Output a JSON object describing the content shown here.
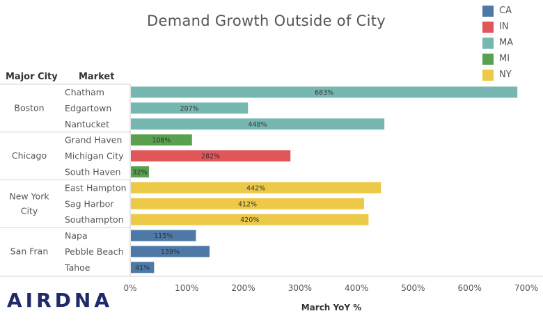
{
  "chart_data": {
    "type": "bar",
    "orientation": "horizontal",
    "title": "Demand Growth Outside of City",
    "xlabel": "March YoY %",
    "row_headers": [
      "Major City",
      "Market"
    ],
    "xlim": [
      0,
      700
    ],
    "xticks": [
      "0%",
      "100%",
      "200%",
      "300%",
      "400%",
      "500%",
      "600%",
      "700%"
    ],
    "legend_position": "top-right",
    "legend": [
      {
        "label": "CA",
        "color": "#4e79a7"
      },
      {
        "label": "IN",
        "color": "#e15759"
      },
      {
        "label": "MA",
        "color": "#76b7b2"
      },
      {
        "label": "MI",
        "color": "#59a14f"
      },
      {
        "label": "NY",
        "color": "#edc948"
      }
    ],
    "groups": [
      {
        "city": [
          "Boston"
        ],
        "markets": [
          {
            "name": "Chatham",
            "value": 683,
            "label": "683%",
            "state": "MA"
          },
          {
            "name": "Edgartown",
            "value": 207,
            "label": "207%",
            "state": "MA"
          },
          {
            "name": "Nantucket",
            "value": 448,
            "label": "448%",
            "state": "MA"
          }
        ]
      },
      {
        "city": [
          "Chicago"
        ],
        "markets": [
          {
            "name": "Grand Haven",
            "value": 108,
            "label": "108%",
            "state": "MI"
          },
          {
            "name": "Michigan City",
            "value": 282,
            "label": "282%",
            "state": "IN"
          },
          {
            "name": "South Haven",
            "value": 32,
            "label": "32%",
            "state": "MI"
          }
        ]
      },
      {
        "city": [
          "New York",
          "City"
        ],
        "markets": [
          {
            "name": "East Hampton",
            "value": 442,
            "label": "442%",
            "state": "NY"
          },
          {
            "name": "Sag Harbor",
            "value": 412,
            "label": "412%",
            "state": "NY"
          },
          {
            "name": "Southampton",
            "value": 420,
            "label": "420%",
            "state": "NY"
          }
        ]
      },
      {
        "city": [
          "San Fran"
        ],
        "markets": [
          {
            "name": "Napa",
            "value": 115,
            "label": "115%",
            "state": "CA"
          },
          {
            "name": "Pebble Beach",
            "value": 139,
            "label": "139%",
            "state": "CA"
          },
          {
            "name": "Tahoe",
            "value": 41,
            "label": "41%",
            "state": "CA"
          }
        ]
      }
    ]
  },
  "logo_text": "AIRDNA"
}
